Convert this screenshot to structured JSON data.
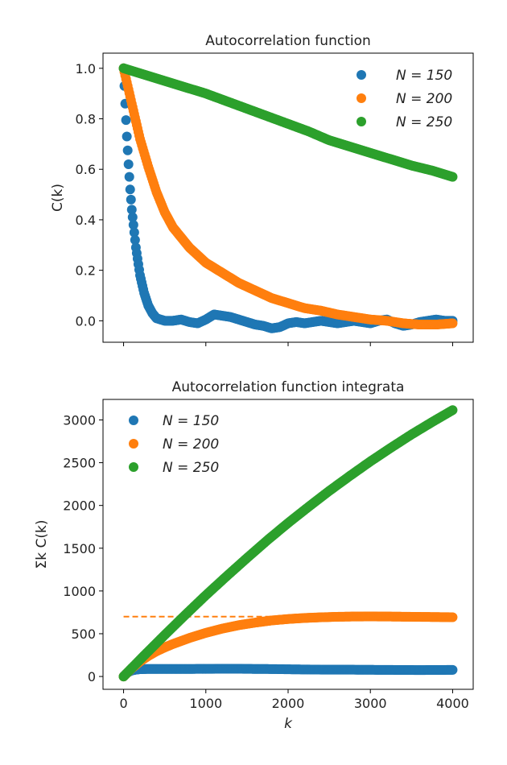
{
  "chart_data": [
    {
      "type": "scatter",
      "title": "Autocorrelation function",
      "xlabel": "",
      "ylabel": "C(k)",
      "xlim": [
        -250,
        4250
      ],
      "ylim": [
        -0.085,
        1.06
      ],
      "x_ticks": [
        0,
        1000,
        2000,
        3000,
        4000
      ],
      "x_tick_labels_visible": false,
      "y_ticks": [
        0.0,
        0.2,
        0.4,
        0.6,
        0.8,
        1.0
      ],
      "y_tick_labels": [
        "0.0",
        "0.2",
        "0.4",
        "0.6",
        "0.8",
        "1.0"
      ],
      "legend_position": "top-right",
      "grid": false,
      "series": [
        {
          "name": "N = 150",
          "color": "#1f77b4",
          "x": [
            0,
            20,
            40,
            60,
            80,
            100,
            150,
            200,
            250,
            300,
            350,
            400,
            500,
            600,
            700,
            800,
            900,
            1000,
            1100,
            1200,
            1300,
            1400,
            1500,
            1600,
            1700,
            1800,
            1900,
            2000,
            2100,
            2200,
            2300,
            2400,
            2500,
            2600,
            2700,
            2800,
            2900,
            3000,
            3100,
            3200,
            3300,
            3400,
            3500,
            3600,
            3700,
            3800,
            3900,
            4000
          ],
          "y": [
            1.0,
            0.86,
            0.73,
            0.62,
            0.52,
            0.44,
            0.29,
            0.18,
            0.11,
            0.06,
            0.03,
            0.01,
            0.0,
            0.0,
            0.005,
            -0.005,
            -0.01,
            0.005,
            0.025,
            0.02,
            0.015,
            0.005,
            -0.005,
            -0.015,
            -0.02,
            -0.03,
            -0.025,
            -0.01,
            -0.005,
            -0.01,
            -0.005,
            0.0,
            -0.005,
            -0.01,
            -0.005,
            0.0,
            -0.005,
            -0.01,
            0.0,
            0.005,
            -0.01,
            -0.02,
            -0.015,
            -0.005,
            0.0,
            0.005,
            0.0,
            0.0
          ]
        },
        {
          "name": "N = 200",
          "color": "#ff7f0e",
          "x": [
            0,
            50,
            100,
            150,
            200,
            300,
            400,
            500,
            600,
            700,
            800,
            900,
            1000,
            1200,
            1400,
            1600,
            1800,
            2000,
            2200,
            2400,
            2600,
            2800,
            3000,
            3200,
            3400,
            3600,
            3800,
            4000
          ],
          "y": [
            1.0,
            0.93,
            0.86,
            0.79,
            0.72,
            0.61,
            0.51,
            0.43,
            0.37,
            0.33,
            0.29,
            0.26,
            0.23,
            0.19,
            0.15,
            0.12,
            0.09,
            0.07,
            0.05,
            0.04,
            0.025,
            0.015,
            0.005,
            0.0,
            -0.01,
            -0.015,
            -0.015,
            -0.01
          ]
        },
        {
          "name": "N = 250",
          "color": "#2ca02c",
          "x": [
            0,
            250,
            500,
            750,
            1000,
            1250,
            1500,
            1750,
            2000,
            2250,
            2500,
            2750,
            3000,
            3250,
            3500,
            3750,
            4000
          ],
          "y": [
            1.0,
            0.975,
            0.95,
            0.925,
            0.9,
            0.87,
            0.84,
            0.81,
            0.78,
            0.75,
            0.715,
            0.69,
            0.665,
            0.64,
            0.615,
            0.595,
            0.57
          ]
        }
      ]
    },
    {
      "type": "scatter",
      "title": "Autocorrelation function integrata",
      "xlabel": "k",
      "ylabel": "Σk C(k)",
      "xlim": [
        -250,
        4250
      ],
      "ylim": [
        -150,
        3240
      ],
      "x_ticks": [
        0,
        1000,
        2000,
        3000,
        4000
      ],
      "x_tick_labels": [
        "0",
        "1000",
        "2000",
        "3000",
        "4000"
      ],
      "y_ticks": [
        0,
        500,
        1000,
        1500,
        2000,
        2500,
        3000
      ],
      "y_tick_labels": [
        "0",
        "500",
        "1000",
        "1500",
        "2000",
        "2500",
        "3000"
      ],
      "legend_position": "top-left",
      "grid": false,
      "reference_line": {
        "y": 700,
        "x_range": [
          0,
          4000
        ],
        "style": "dashed",
        "color": "#ff7f0e"
      },
      "series": [
        {
          "name": "N = 150",
          "color": "#1f77b4",
          "x": [
            0,
            20,
            40,
            60,
            80,
            100,
            150,
            200,
            300,
            400,
            600,
            800,
            1000,
            1200,
            1400,
            1600,
            1800,
            2000,
            2200,
            2400,
            2600,
            2800,
            3000,
            3200,
            3400,
            3600,
            3800,
            4000
          ],
          "y": [
            0,
            20,
            38,
            52,
            62,
            70,
            80,
            85,
            88,
            88,
            88,
            88,
            89,
            90,
            90,
            88,
            87,
            84,
            82,
            80,
            80,
            79,
            78,
            77,
            76,
            75,
            76,
            77
          ]
        },
        {
          "name": "N = 200",
          "color": "#ff7f0e",
          "x": [
            0,
            100,
            200,
            300,
            400,
            500,
            600,
            800,
            1000,
            1200,
            1400,
            1600,
            1800,
            2000,
            2200,
            2400,
            2600,
            2800,
            3000,
            3200,
            3400,
            3600,
            3800,
            4000
          ],
          "y": [
            0,
            95,
            175,
            240,
            295,
            340,
            380,
            450,
            510,
            560,
            600,
            630,
            655,
            672,
            684,
            692,
            698,
            701,
            702,
            701,
            699,
            697,
            695,
            693
          ]
        },
        {
          "name": "N = 250",
          "color": "#2ca02c",
          "x": [
            0,
            250,
            500,
            750,
            1000,
            1250,
            1500,
            1750,
            2000,
            2250,
            2500,
            2750,
            3000,
            3250,
            3500,
            3750,
            4000
          ],
          "y": [
            0,
            245,
            485,
            720,
            950,
            1170,
            1385,
            1595,
            1795,
            1985,
            2170,
            2345,
            2515,
            2675,
            2830,
            2975,
            3115
          ]
        }
      ]
    }
  ]
}
